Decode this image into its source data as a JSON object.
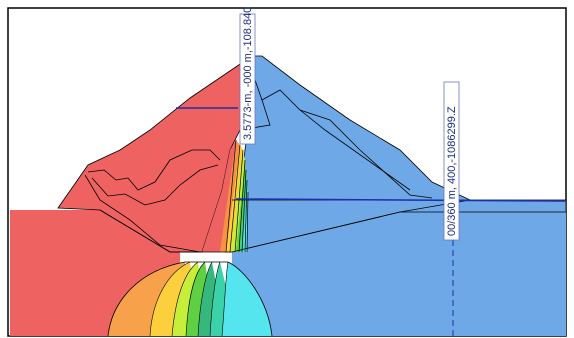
{
  "section_labels": {
    "left": "3.5773-m, -000 m,-108.840",
    "right": "00/360 m, 400,-1086299.Z"
  }
}
